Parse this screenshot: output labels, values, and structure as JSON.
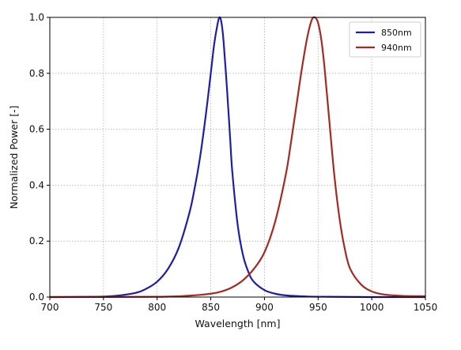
{
  "chart_data": {
    "type": "line",
    "xlabel": "Wavelength [nm]",
    "ylabel": "Normalized Power [-]",
    "xlim": [
      700,
      1050
    ],
    "ylim": [
      0,
      1.0
    ],
    "xticks": [
      700,
      750,
      800,
      850,
      900,
      950,
      1000,
      1050
    ],
    "xtick_labels": [
      "700",
      "750",
      "800",
      "850",
      "900",
      "950",
      "1000",
      "1050"
    ],
    "yticks": [
      0,
      0.2,
      0.4,
      0.6,
      0.8,
      1.0
    ],
    "ytick_labels": [
      "0.0",
      "0.2",
      "0.4",
      "0.6",
      "0.8",
      "1.0"
    ],
    "grid": true,
    "legend_position": "top-right",
    "series": [
      {
        "name": "850nm",
        "color": "#1f1fa6",
        "x": [
          700,
          740,
          760,
          780,
          790,
          800,
          810,
          820,
          830,
          835,
          840,
          845,
          850,
          853,
          856,
          858,
          860,
          862,
          865,
          868,
          870,
          875,
          880,
          885,
          890,
          900,
          910,
          920,
          940,
          960,
          1000,
          1050
        ],
        "y": [
          0.0,
          0.001,
          0.004,
          0.015,
          0.03,
          0.055,
          0.1,
          0.175,
          0.3,
          0.39,
          0.5,
          0.64,
          0.8,
          0.9,
          0.97,
          1.0,
          0.98,
          0.91,
          0.75,
          0.57,
          0.45,
          0.26,
          0.15,
          0.09,
          0.055,
          0.025,
          0.012,
          0.006,
          0.002,
          0.001,
          0.0,
          0.0
        ]
      },
      {
        "name": "940nm",
        "color": "#a52a22",
        "x": [
          700,
          800,
          830,
          850,
          860,
          870,
          880,
          890,
          900,
          910,
          920,
          925,
          930,
          935,
          940,
          944,
          947,
          950,
          953,
          956,
          960,
          965,
          970,
          975,
          980,
          990,
          1000,
          1010,
          1020,
          1030,
          1050
        ],
        "y": [
          0.0,
          0.001,
          0.005,
          0.012,
          0.02,
          0.035,
          0.06,
          0.1,
          0.16,
          0.27,
          0.44,
          0.56,
          0.69,
          0.82,
          0.93,
          0.99,
          1.0,
          0.98,
          0.92,
          0.82,
          0.65,
          0.44,
          0.28,
          0.17,
          0.1,
          0.045,
          0.02,
          0.01,
          0.006,
          0.004,
          0.003
        ]
      }
    ]
  }
}
